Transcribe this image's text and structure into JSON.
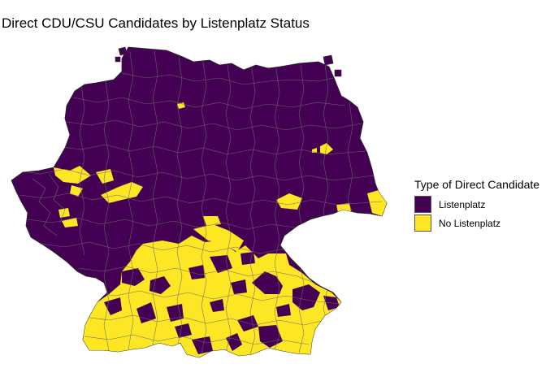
{
  "title": "Direct CDU/CSU Candidates by Listenplatz Status",
  "legend": {
    "title": "Type of Direct Candidate",
    "items": [
      {
        "label": "Listenplatz",
        "color": "#440154"
      },
      {
        "label": "No Listenplatz",
        "color": "#FDE725"
      }
    ]
  },
  "map": {
    "region": "Germany electoral districts",
    "colors": {
      "listenplatz": "#440154",
      "no_listenplatz": "#FDE725",
      "boundary": "#6b6b6b"
    }
  }
}
